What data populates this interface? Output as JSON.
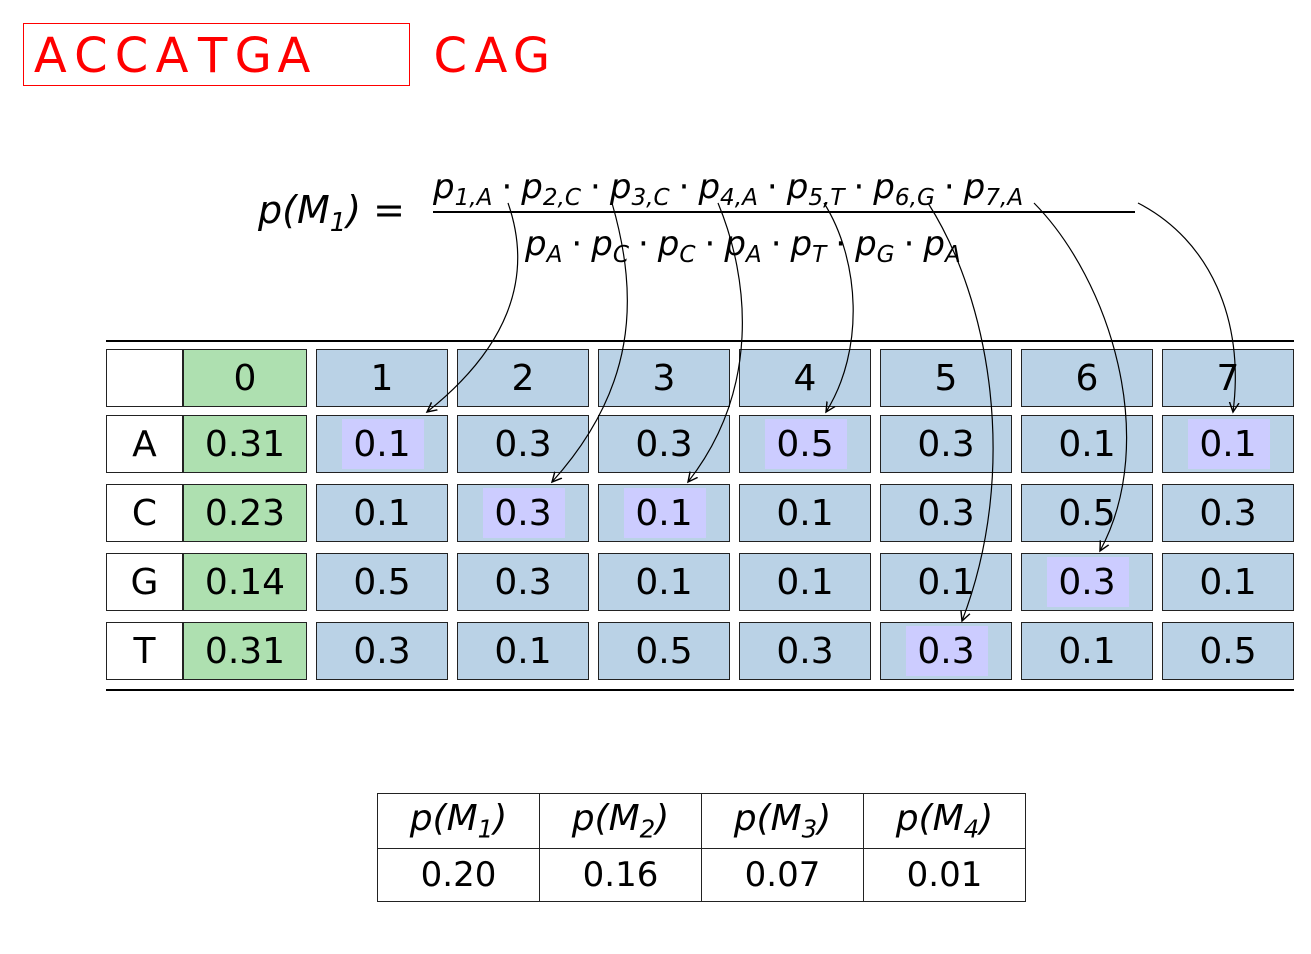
{
  "sequence": {
    "window_letters": [
      "A",
      "C",
      "C",
      "A",
      "T",
      "G",
      "A"
    ],
    "rest_letters": [
      "C",
      "A",
      "G"
    ]
  },
  "formula": {
    "lhs": {
      "p": "p(",
      "m": "M",
      "sub": "1",
      "close": ")",
      "eq": "="
    },
    "numerator": [
      {
        "p": "p",
        "sub": "1,A"
      },
      {
        "p": "p",
        "sub": "2,C"
      },
      {
        "p": "p",
        "sub": "3,C"
      },
      {
        "p": "p",
        "sub": "4,A"
      },
      {
        "p": "p",
        "sub": "5,T"
      },
      {
        "p": "p",
        "sub": "6,G"
      },
      {
        "p": "p",
        "sub": "7,A"
      }
    ],
    "denominator": [
      {
        "p": "p",
        "sub": "A"
      },
      {
        "p": "p",
        "sub": "C"
      },
      {
        "p": "p",
        "sub": "C"
      },
      {
        "p": "p",
        "sub": "A"
      },
      {
        "p": "p",
        "sub": "T"
      },
      {
        "p": "p",
        "sub": "G"
      },
      {
        "p": "p",
        "sub": "A"
      }
    ],
    "dot": "·"
  },
  "matrix": {
    "columns": [
      "0",
      "1",
      "2",
      "3",
      "4",
      "5",
      "6",
      "7"
    ],
    "rows": [
      {
        "base": "A",
        "values": [
          "0.31",
          "0.1",
          "0.3",
          "0.3",
          "0.5",
          "0.3",
          "0.1",
          "0.1"
        ]
      },
      {
        "base": "C",
        "values": [
          "0.23",
          "0.1",
          "0.3",
          "0.1",
          "0.1",
          "0.3",
          "0.5",
          "0.3"
        ]
      },
      {
        "base": "G",
        "values": [
          "0.14",
          "0.5",
          "0.3",
          "0.1",
          "0.1",
          "0.1",
          "0.3",
          "0.1"
        ]
      },
      {
        "base": "T",
        "values": [
          "0.31",
          "0.3",
          "0.1",
          "0.5",
          "0.3",
          "0.3",
          "0.1",
          "0.5"
        ]
      }
    ],
    "highlighted": [
      {
        "col": 1,
        "row": 0
      },
      {
        "col": 2,
        "row": 1
      },
      {
        "col": 3,
        "row": 1
      },
      {
        "col": 4,
        "row": 0
      },
      {
        "col": 5,
        "row": 3
      },
      {
        "col": 6,
        "row": 2
      },
      {
        "col": 7,
        "row": 0
      }
    ],
    "colors": {
      "background_col": "#aee0b0",
      "position_cols": "#bad2e6",
      "highlight": "#ccccff"
    }
  },
  "scores": {
    "headers": [
      {
        "p": "p(",
        "m": "M",
        "sub": "1",
        "close": ")"
      },
      {
        "p": "p(",
        "m": "M",
        "sub": "2",
        "close": ")"
      },
      {
        "p": "p(",
        "m": "M",
        "sub": "3",
        "close": ")"
      },
      {
        "p": "p(",
        "m": "M",
        "sub": "4",
        "close": ")"
      }
    ],
    "values": [
      "0.20",
      "0.16",
      "0.07",
      "0.01"
    ]
  }
}
